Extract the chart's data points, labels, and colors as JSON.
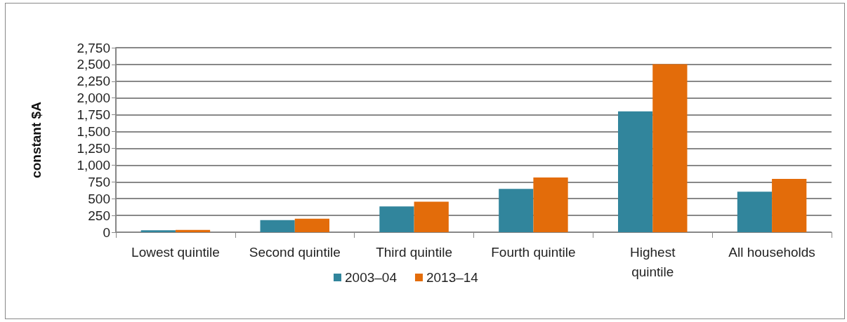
{
  "chart_data": {
    "type": "bar",
    "ylabel": "constant $A",
    "categories": [
      "Lowest quintile",
      "Second quintile",
      "Third quintile",
      "Fourth quintile",
      "Highest\nquintile",
      "All households"
    ],
    "series": [
      {
        "name": "2003–04",
        "color": "#31859c",
        "values": [
          30,
          180,
          385,
          645,
          1800,
          605
        ]
      },
      {
        "name": "2013–14",
        "color": "#e36c0a",
        "values": [
          35,
          200,
          455,
          815,
          2505,
          795
        ]
      }
    ],
    "ylim": [
      0,
      2750
    ],
    "yticks": [
      0,
      250,
      500,
      750,
      {
        "value": 1000,
        "label": "1,000"
      },
      {
        "value": 1250,
        "label": "1,250"
      },
      {
        "value": 1500,
        "label": "1,500"
      },
      {
        "value": 1750,
        "label": "1,750"
      },
      {
        "value": 2000,
        "label": "2,000"
      },
      {
        "value": 2250,
        "label": "2,250"
      },
      {
        "value": 2500,
        "label": "2,500"
      },
      {
        "value": 2750,
        "label": "2,750"
      }
    ],
    "grid": "y",
    "legend": "bottom"
  }
}
